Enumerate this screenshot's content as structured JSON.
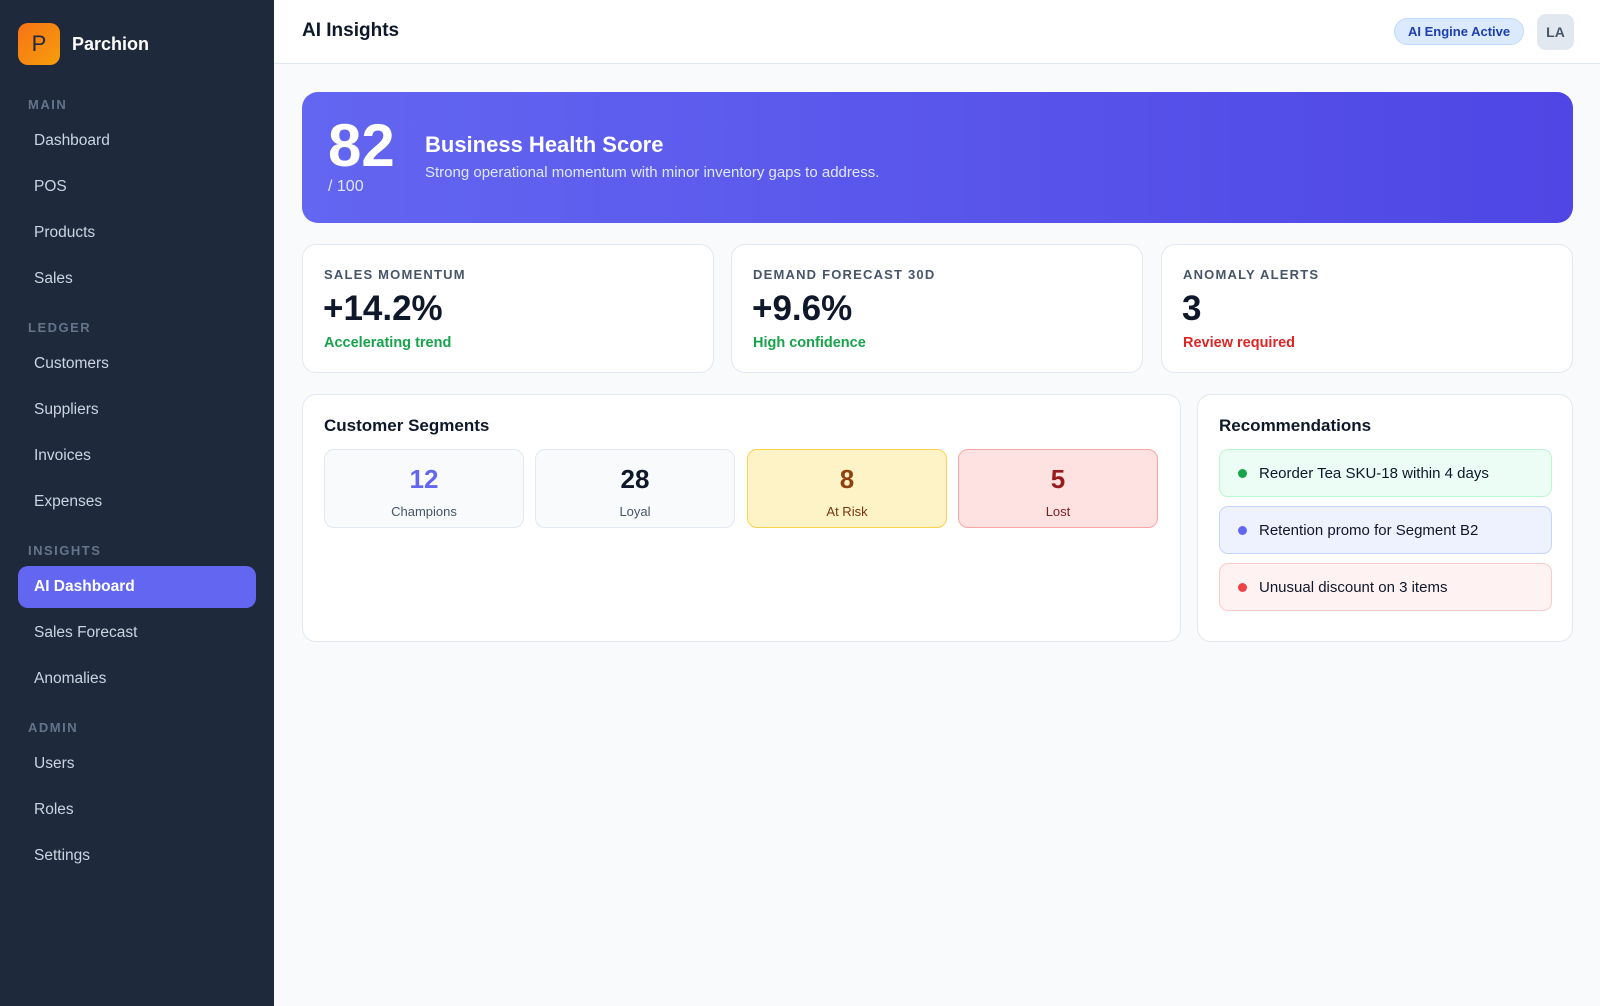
{
  "brand": {
    "logo_letter": "P",
    "name": "Parchion"
  },
  "sidebar": {
    "sections": [
      {
        "label": "MAIN",
        "items": [
          "Dashboard",
          "POS",
          "Products",
          "Sales"
        ]
      },
      {
        "label": "LEDGER",
        "items": [
          "Customers",
          "Suppliers",
          "Invoices",
          "Expenses"
        ]
      },
      {
        "label": "INSIGHTS",
        "items": [
          "AI Dashboard",
          "Sales Forecast",
          "Anomalies"
        ]
      },
      {
        "label": "ADMIN",
        "items": [
          "Users",
          "Roles",
          "Settings"
        ]
      }
    ],
    "active_item": "AI Dashboard"
  },
  "header": {
    "title": "AI Insights",
    "engine_status": "AI Engine Active",
    "user_initials": "LA"
  },
  "health": {
    "score": "82",
    "max": "/ 100",
    "title": "Business Health Score",
    "description": "Strong operational momentum with minor inventory gaps to address."
  },
  "kpis": [
    {
      "label": "SALES MOMENTUM",
      "value": "+14.2%",
      "sub": "Accelerating trend",
      "tone": "#16a34a"
    },
    {
      "label": "DEMAND FORECAST 30D",
      "value": "+9.6%",
      "sub": "High confidence",
      "tone": "#16a34a"
    },
    {
      "label": "ANOMALY ALERTS",
      "value": "3",
      "sub": "Review required",
      "tone": "#dc2626"
    }
  ],
  "segments": {
    "title": "Customer Segments",
    "items": [
      {
        "value": "12",
        "label": "Champions",
        "color": "#6366f1"
      },
      {
        "value": "28",
        "label": "Loyal",
        "color": "#0f172a"
      },
      {
        "value": "8",
        "label": "At Risk",
        "color": "#92400e"
      },
      {
        "value": "5",
        "label": "Lost",
        "color": "#991b1b"
      }
    ]
  },
  "recommendations": {
    "title": "Recommendations",
    "items": [
      {
        "text": "Reorder Tea SKU-18 within 4 days",
        "status_color": "#16a34a"
      },
      {
        "text": "Retention promo for Segment B2",
        "status_color": "#6366f1"
      },
      {
        "text": "Unusual discount on 3 items",
        "status_color": "#ef4444"
      }
    ]
  }
}
